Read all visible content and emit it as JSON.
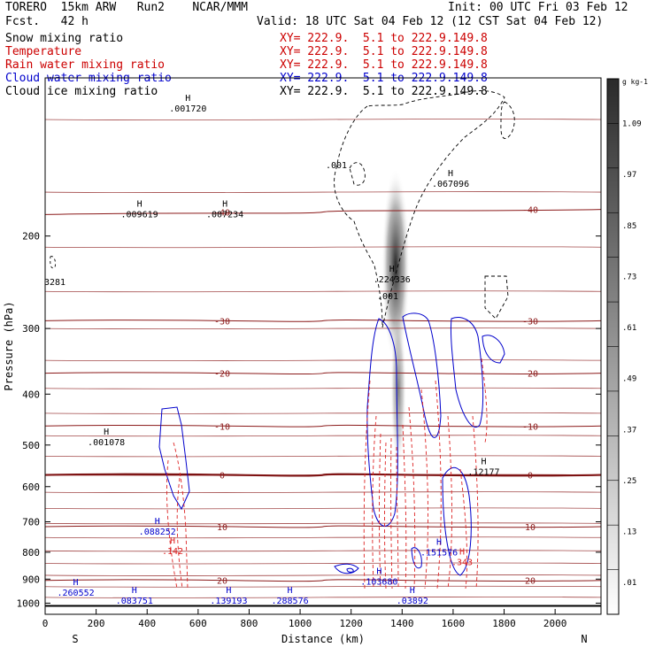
{
  "header": {
    "model": "TORERO  15km ARW   Run2    NCAR/MMM",
    "forecast": "Fcst.   42 h",
    "init": "Init: 00 UTC Fri 03 Feb 12",
    "valid": "Valid: 18 UTC Sat 04 Feb 12 (12 CST Sat 04 Feb 12)"
  },
  "fields": [
    {
      "name": "Snow mixing ratio",
      "xy": "XY= 222.9.  5.1 to 222.9.149.8",
      "color": "#000000",
      "xy_color": "#cc0000"
    },
    {
      "name": "Temperature",
      "xy": "XY= 222.9.  5.1 to 222.9.149.8",
      "color": "#cc0000",
      "xy_color": "#cc0000"
    },
    {
      "name": "Rain water mixing ratio",
      "xy": "XY= 222.9.  5.1 to 222.9.149.8",
      "color": "#cc0000",
      "xy_color": "#cc0000"
    },
    {
      "name": "Cloud water mixing ratio",
      "xy": "XY= 222.9.  5.1 to 222.9.149.8",
      "color": "#0000cc",
      "xy_color": "#0000cc"
    },
    {
      "name": "Cloud ice mixing ratio",
      "xy": "XY= 222.9.  5.1 to 222.9.149.8",
      "color": "#000000",
      "xy_color": "#000000"
    }
  ],
  "colorbar": {
    "unit": "g kg-1",
    "ticks": [
      ".01",
      ".13",
      ".25",
      ".37",
      ".49",
      ".61",
      ".73",
      ".85",
      ".97",
      "1.09"
    ]
  },
  "chart_data": {
    "type": "cross-section contour",
    "xlabel": "Distance (km)",
    "ylabel": "Pressure (hPa)",
    "xlim": [
      0,
      2180
    ],
    "ylim": [
      1050,
      100
    ],
    "y_scale": "log",
    "xticks": [
      0,
      200,
      400,
      600,
      800,
      1000,
      1200,
      1400,
      1600,
      1800,
      2000
    ],
    "yticks": [
      200,
      300,
      400,
      500,
      600,
      700,
      800,
      900,
      1000
    ],
    "left_end": "S",
    "right_end": "N",
    "temperature_isotherms_degC": [
      {
        "label": "-40",
        "p": [
          182,
          180,
          178
        ]
      },
      {
        "label": "-30",
        "p": [
          290,
          290,
          290
        ]
      },
      {
        "label": "-20",
        "p": [
          365,
          365,
          365
        ]
      },
      {
        "label": "-10",
        "p": [
          460,
          460,
          460
        ]
      },
      {
        "label": "0",
        "p": [
          570,
          570,
          570
        ]
      },
      {
        "label": "10",
        "p": [
          715,
          715,
          715
        ]
      },
      {
        "label": "20",
        "p": [
          905,
          905,
          905
        ]
      }
    ],
    "maxima_labels": [
      {
        "label": ".001720",
        "x": 560,
        "p": 115
      },
      {
        "label": ".009619",
        "x": 370,
        "p": 183
      },
      {
        "label": ".007234",
        "x": 705,
        "p": 183
      },
      {
        "label": ".067096",
        "x": 1590,
        "p": 160
      },
      {
        "label": ".224336",
        "x": 1360,
        "p": 243
      },
      {
        "label": ".001078",
        "x": 240,
        "p": 497
      },
      {
        "label": ".12177",
        "x": 1720,
        "p": 565
      },
      {
        "label": ".088252",
        "x": 440,
        "p": 735
      },
      {
        "label": ".151576",
        "x": 1545,
        "p": 805
      },
      {
        "label": ".343",
        "x": 1635,
        "p": 840
      },
      {
        "label": ".142",
        "x": 500,
        "p": 800
      },
      {
        "label": ".103680",
        "x": 1310,
        "p": 915
      },
      {
        "label": ".260552",
        "x": 120,
        "p": 960
      },
      {
        "label": ".083751",
        "x": 350,
        "p": 995
      },
      {
        "label": ".139193",
        "x": 720,
        "p": 995
      },
      {
        "label": ".288576",
        "x": 960,
        "p": 995
      },
      {
        "label": ".03892",
        "x": 1440,
        "p": 995
      }
    ],
    "other_labels": [
      ".001",
      "3281",
      ".001"
    ]
  }
}
